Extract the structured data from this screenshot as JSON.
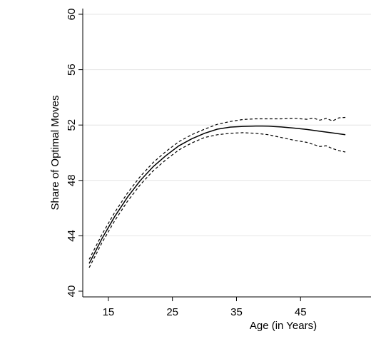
{
  "chart_data": {
    "type": "line",
    "xlabel": "Age (in Years)",
    "ylabel": "Share of Optimal Moves",
    "xlim": [
      11,
      56
    ],
    "ylim": [
      40,
      60
    ],
    "xticks": [
      15,
      25,
      35,
      45
    ],
    "yticks": [
      40,
      44,
      48,
      52,
      56,
      60
    ],
    "grid": "horizontal",
    "legend": "none",
    "series": [
      {
        "role": "estimate",
        "style": "solid",
        "color": "#000000",
        "x": [
          12,
          13,
          14,
          15,
          16,
          17,
          18,
          19,
          20,
          22,
          24,
          26,
          28,
          30,
          32,
          34,
          36,
          38,
          39,
          40,
          42,
          44,
          46,
          48,
          50,
          52
        ],
        "y": [
          42.0,
          42.9,
          43.8,
          44.6,
          45.4,
          46.1,
          46.8,
          47.4,
          48.0,
          49.0,
          49.8,
          50.5,
          51.0,
          51.4,
          51.7,
          51.85,
          51.9,
          51.93,
          51.93,
          51.92,
          51.86,
          51.78,
          51.68,
          51.55,
          51.43,
          51.3
        ]
      },
      {
        "role": "upper-ci",
        "style": "dashed",
        "color": "#000000",
        "x": [
          12,
          13,
          14,
          15,
          16,
          17,
          18,
          19,
          20,
          22,
          24,
          26,
          28,
          30,
          32,
          34,
          36,
          38,
          40,
          42,
          44,
          46,
          47,
          48,
          49,
          50,
          51,
          52
        ],
        "y": [
          42.3,
          43.2,
          44.1,
          44.9,
          45.7,
          46.4,
          47.1,
          47.7,
          48.3,
          49.3,
          50.1,
          50.8,
          51.3,
          51.7,
          52.05,
          52.25,
          52.4,
          52.45,
          52.45,
          52.45,
          52.48,
          52.42,
          52.5,
          52.35,
          52.48,
          52.3,
          52.52,
          52.55
        ]
      },
      {
        "role": "lower-ci",
        "style": "dashed",
        "color": "#000000",
        "x": [
          12,
          13,
          14,
          15,
          16,
          17,
          18,
          19,
          20,
          22,
          24,
          26,
          28,
          30,
          32,
          34,
          36,
          38,
          40,
          42,
          44,
          46,
          47,
          48,
          49,
          50,
          51,
          52
        ],
        "y": [
          41.7,
          42.6,
          43.5,
          44.3,
          45.1,
          45.8,
          46.5,
          47.1,
          47.7,
          48.7,
          49.5,
          50.2,
          50.7,
          51.1,
          51.3,
          51.4,
          51.45,
          51.4,
          51.3,
          51.1,
          50.9,
          50.75,
          50.6,
          50.45,
          50.5,
          50.3,
          50.15,
          50.05
        ]
      }
    ]
  }
}
